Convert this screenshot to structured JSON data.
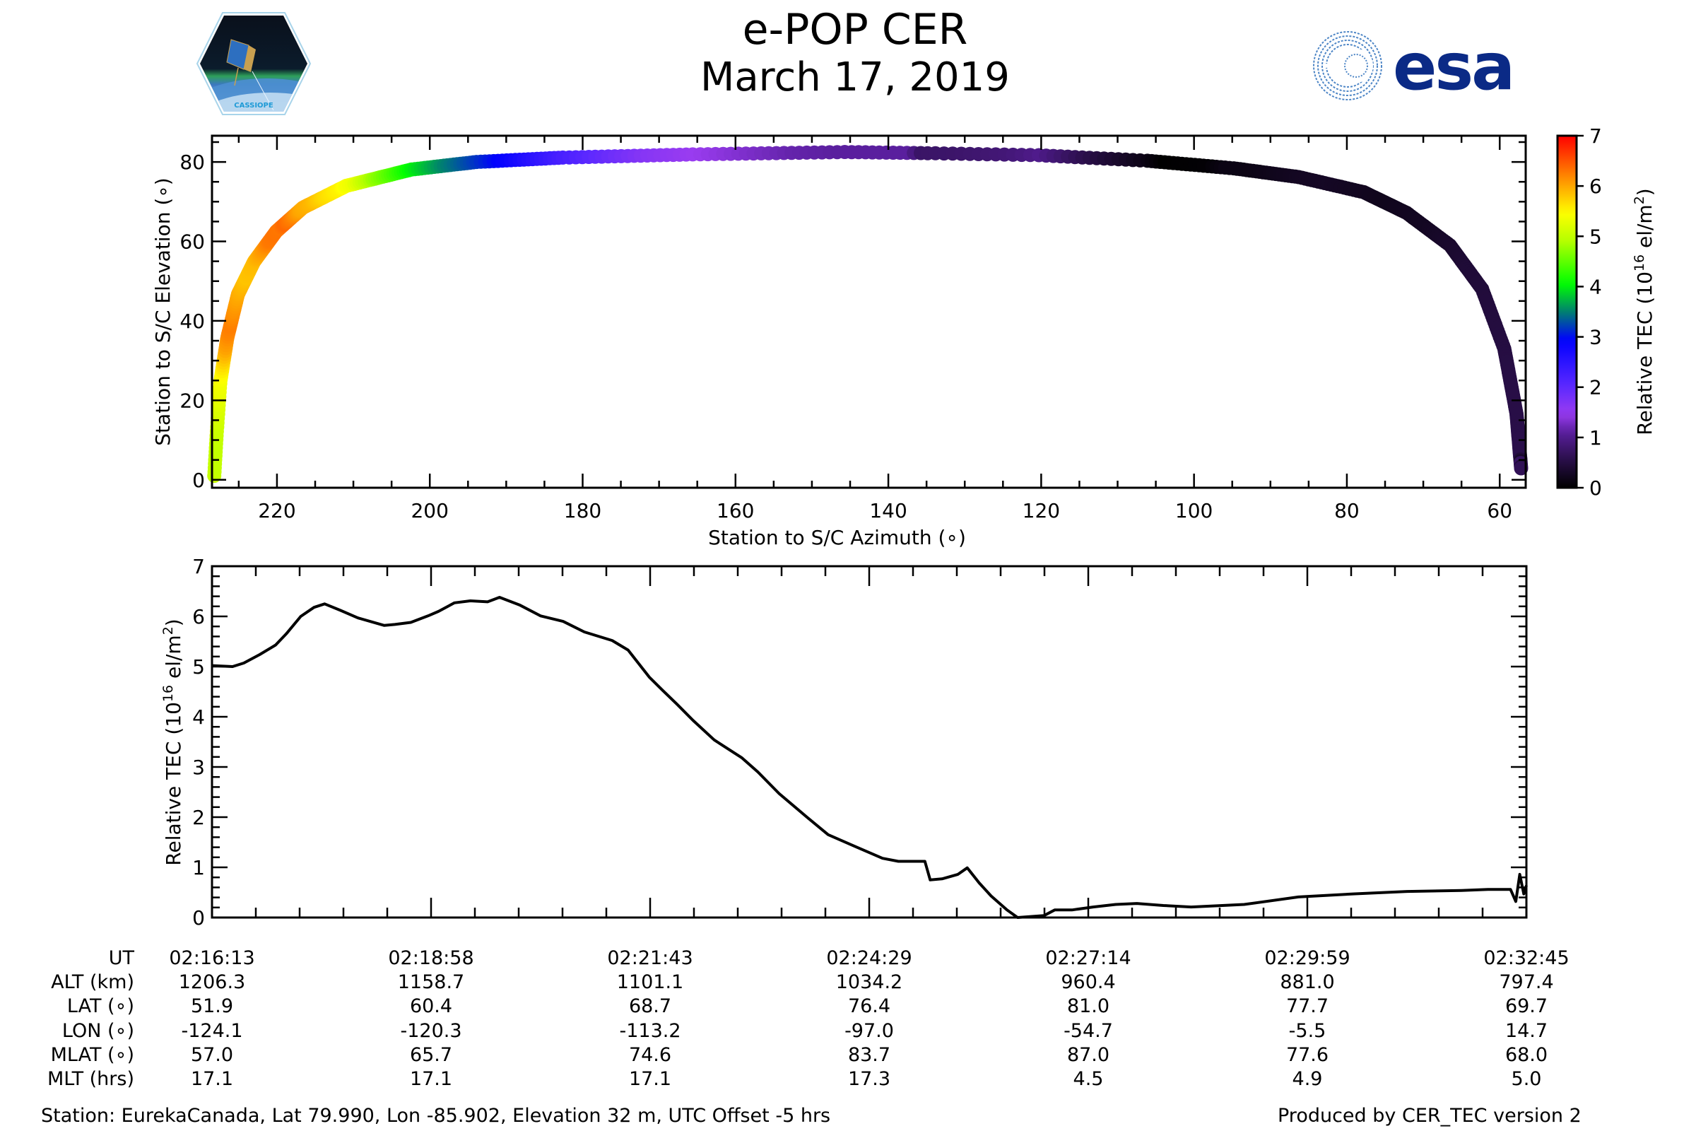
{
  "header": {
    "title": "e-POP CER",
    "date": "March 17, 2019",
    "left_logo": "CASSIOPE mission patch",
    "left_logo_text": "CASSIOPE",
    "right_logo": "esa"
  },
  "colors": {
    "line": "#000000",
    "esa_blue": "#0b2a86",
    "esa_light": "#4e86c6"
  },
  "chart_data": [
    {
      "type": "scatter",
      "title": "",
      "xlabel": "Station to S/C Azimuth (∘)",
      "ylabel": "Station to S/C Elevation (∘)",
      "xlim": [
        228.5,
        56.6
      ],
      "ylim": [
        -2,
        86.6
      ],
      "xticks": [
        220,
        200,
        180,
        160,
        140,
        120,
        100,
        80,
        60
      ],
      "yticks": [
        0,
        20,
        40,
        60,
        80
      ],
      "color_by": "Relative TEC",
      "colorbar": {
        "label": "Relative TEC (10^16 el/m^2)",
        "label_parts": [
          "Relative TEC (10",
          "16",
          " el/m",
          "2",
          ")"
        ],
        "range": [
          0,
          7
        ],
        "ticks": [
          0,
          1,
          2,
          3,
          4,
          5,
          6,
          7
        ],
        "colormap_stops": [
          [
            0.0,
            "#000000"
          ],
          [
            0.08,
            "#2a0f4a"
          ],
          [
            0.16,
            "#5a1f9e"
          ],
          [
            0.21,
            "#9a3cf0"
          ],
          [
            0.29,
            "#5a28ff"
          ],
          [
            0.42,
            "#0000ff"
          ],
          [
            0.5,
            "#008070"
          ],
          [
            0.58,
            "#00ff00"
          ],
          [
            0.7,
            "#b4ff00"
          ],
          [
            0.78,
            "#ffff00"
          ],
          [
            0.88,
            "#ff8c00"
          ],
          [
            1.0,
            "#ff0000"
          ]
        ]
      },
      "track": {
        "time_s": [
          0,
          20,
          45,
          75,
          110,
          150,
          200,
          255,
          310,
          360,
          400,
          440,
          480,
          520,
          545,
          570,
          600,
          640,
          680,
          720,
          760,
          800,
          840,
          880,
          930,
          992
        ],
        "azimuth": [
          228.2,
          227.9,
          227.4,
          226.5,
          225.1,
          223.0,
          220.1,
          216.6,
          210.9,
          202.4,
          193.9,
          182.6,
          165.6,
          145.7,
          134.4,
          120.3,
          106.1,
          94.8,
          86.3,
          77.8,
          72.2,
          66.5,
          62.3,
          59.4,
          57.8,
          57.2
        ],
        "elevation": [
          1.0,
          11.1,
          24.8,
          35.7,
          46.7,
          54.9,
          62.5,
          68.5,
          74.0,
          78.1,
          80.0,
          81.1,
          81.9,
          82.5,
          82.2,
          81.7,
          80.3,
          78.4,
          76.2,
          72.4,
          67.2,
          59.0,
          48.0,
          33.0,
          16.6,
          2.9
        ]
      }
    },
    {
      "type": "line",
      "title": "",
      "xlabel": "",
      "ylabel": "Relative TEC (10^16 el/m^2)",
      "ylabel_parts": [
        "Relative TEC (10",
        "16",
        " el/m",
        "2",
        ")"
      ],
      "xlim_s": [
        0,
        992
      ],
      "ylim": [
        0,
        7
      ],
      "yticks": [
        0,
        1,
        2,
        3,
        4,
        5,
        6,
        7
      ],
      "x_time_start": "02:16:13",
      "series": [
        {
          "name": "Relative TEC",
          "t_s": [
            0,
            15.5,
            24,
            36,
            48,
            56,
            67,
            77,
            85,
            97,
            110,
            130,
            138,
            150,
            163,
            171,
            183,
            195,
            208,
            217,
            232,
            248,
            265,
            281,
            302,
            314,
            330,
            340,
            351,
            363,
            379,
            400,
            412,
            428,
            449,
            465,
            485,
            506,
            518,
            538,
            542,
            551,
            563,
            570,
            579,
            588,
            600,
            608,
            628,
            636,
            649,
            665,
            682,
            698,
            718,
            739,
            779,
            820,
            861,
            902,
            943,
            963,
            980,
            984,
            987,
            990,
            992
          ],
          "values": [
            5.02,
            5.0,
            5.07,
            5.24,
            5.43,
            5.65,
            6.0,
            6.18,
            6.25,
            6.12,
            5.97,
            5.82,
            5.84,
            5.88,
            6.01,
            6.1,
            6.27,
            6.31,
            6.29,
            6.38,
            6.23,
            6.01,
            5.9,
            5.69,
            5.52,
            5.33,
            4.79,
            4.53,
            4.25,
            3.93,
            3.54,
            3.18,
            2.9,
            2.47,
            2.0,
            1.65,
            1.42,
            1.18,
            1.12,
            1.12,
            0.75,
            0.77,
            0.86,
            0.99,
            0.69,
            0.43,
            0.15,
            0.0,
            0.04,
            0.15,
            0.15,
            0.21,
            0.26,
            0.28,
            0.24,
            0.21,
            0.26,
            0.41,
            0.47,
            0.52,
            0.54,
            0.56,
            0.56,
            0.32,
            0.86,
            0.47,
            0.64
          ]
        }
      ]
    }
  ],
  "table": {
    "row_labels": [
      "UT",
      "ALT (km)",
      "LAT (∘)",
      "LON (∘)",
      "MLAT (∘)",
      "MLT (hrs)"
    ],
    "columns": [
      {
        "UT": "02:16:13",
        "ALT": "1206.3",
        "LAT": "51.9",
        "LON": "-124.1",
        "MLAT": "57.0",
        "MLT": "17.1"
      },
      {
        "UT": "02:18:58",
        "ALT": "1158.7",
        "LAT": "60.4",
        "LON": "-120.3",
        "MLAT": "65.7",
        "MLT": "17.1"
      },
      {
        "UT": "02:21:43",
        "ALT": "1101.1",
        "LAT": "68.7",
        "LON": "-113.2",
        "MLAT": "74.6",
        "MLT": "17.1"
      },
      {
        "UT": "02:24:29",
        "ALT": "1034.2",
        "LAT": "76.4",
        "LON": "-97.0",
        "MLAT": "83.7",
        "MLT": "17.3"
      },
      {
        "UT": "02:27:14",
        "ALT": "960.4",
        "LAT": "81.0",
        "LON": "-54.7",
        "MLAT": "87.0",
        "MLT": "4.5"
      },
      {
        "UT": "02:29:59",
        "ALT": "881.0",
        "LAT": "77.7",
        "LON": "-5.5",
        "MLAT": "77.6",
        "MLT": "4.9"
      },
      {
        "UT": "02:32:45",
        "ALT": "797.4",
        "LAT": "69.7",
        "LON": "14.7",
        "MLAT": "68.0",
        "MLT": "5.0"
      }
    ]
  },
  "footer": {
    "station": "Station: EurekaCanada, Lat 79.990, Lon -85.902, Elevation 32 m, UTC Offset -5 hrs",
    "produced_by": "Produced by CER_TEC version 2"
  }
}
